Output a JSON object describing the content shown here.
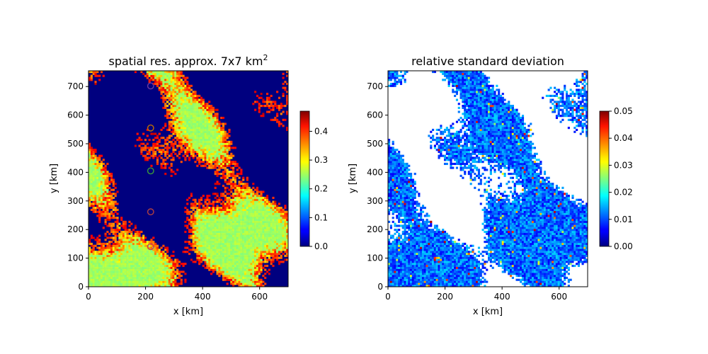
{
  "chart_data": [
    {
      "type": "heatmap",
      "title": "spatial res. approx. 7x7 km",
      "title_sup": "2",
      "xlabel": "x [km]",
      "ylabel": "y [km]",
      "xlim": [
        0,
        700
      ],
      "ylim": [
        0,
        755
      ],
      "xticks": [
        "0",
        "200",
        "400",
        "600"
      ],
      "yticks": [
        "0",
        "100",
        "200",
        "300",
        "400",
        "500",
        "600",
        "700"
      ],
      "colormap": "jet",
      "colorbar": {
        "min": 0.0,
        "max": 0.47,
        "ticks": [
          "0.0",
          "0.1",
          "0.2",
          "0.3",
          "0.4"
        ]
      },
      "grid": false,
      "markers": [
        {
          "x": 218,
          "y": 702,
          "color": "#6a3aa0"
        },
        {
          "x": 218,
          "y": 555,
          "color": "#c07000"
        },
        {
          "x": 218,
          "y": 405,
          "color": "#3a9a3a"
        },
        {
          "x": 218,
          "y": 262,
          "color": "#b04040"
        },
        {
          "x": 218,
          "y": 140,
          "color": "#c04060"
        }
      ]
    },
    {
      "type": "heatmap",
      "title": "relative standard deviation",
      "xlabel": "x [km]",
      "ylabel": "y [km]",
      "xlim": [
        0,
        700
      ],
      "ylim": [
        0,
        755
      ],
      "xticks": [
        "0",
        "200",
        "400",
        "600"
      ],
      "yticks": [
        "0",
        "100",
        "200",
        "300",
        "400",
        "500",
        "600",
        "700"
      ],
      "colormap": "jet",
      "colorbar": {
        "min": 0.0,
        "max": 0.05,
        "ticks": [
          "0.00",
          "0.01",
          "0.02",
          "0.03",
          "0.04",
          "0.05"
        ]
      },
      "grid": false
    }
  ],
  "colors": {
    "background": "#ffffff",
    "axis": "#000000",
    "low": "#00007f",
    "high": "#7f0000"
  }
}
